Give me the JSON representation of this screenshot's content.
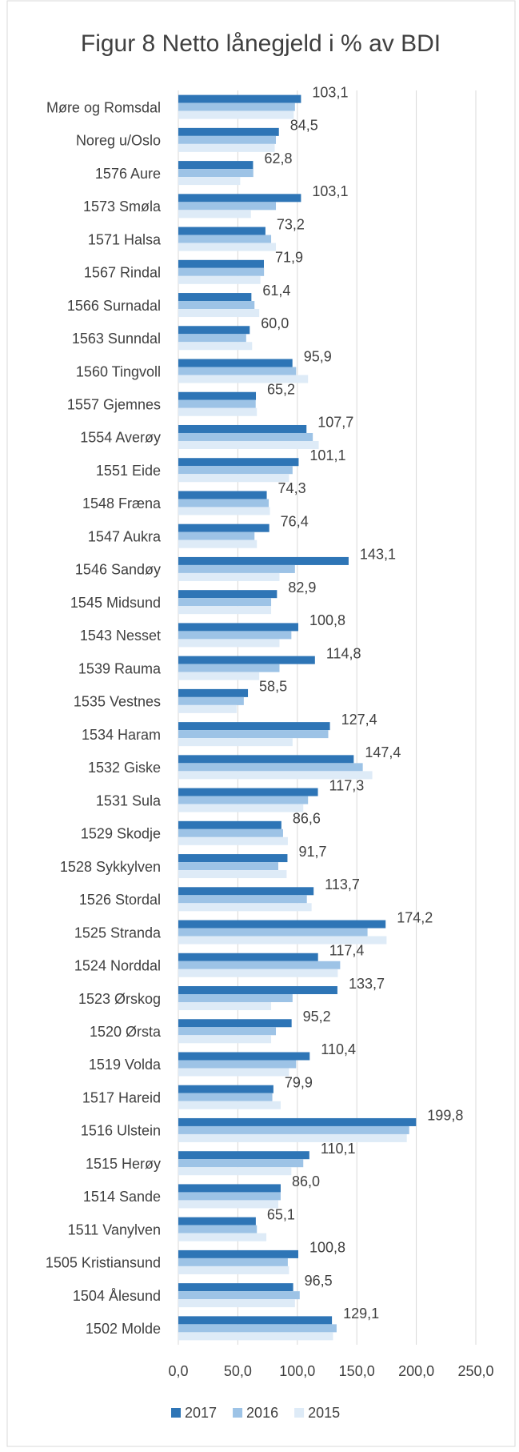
{
  "chart_data": {
    "type": "bar",
    "orientation": "horizontal",
    "title": "Figur 8 Netto lånegjeld i % av BDI",
    "categories": [
      "Møre og Romsdal",
      "Noreg u/Oslo",
      "1576 Aure",
      "1573 Smøla",
      "1571 Halsa",
      "1567 Rindal",
      "1566 Surnadal",
      "1563 Sunndal",
      "1560 Tingvoll",
      "1557 Gjemnes",
      "1554 Averøy",
      "1551 Eide",
      "1548 Fræna",
      "1547 Aukra",
      "1546 Sandøy",
      "1545 Midsund",
      "1543 Nesset",
      "1539 Rauma",
      "1535 Vestnes",
      "1534 Haram",
      "1532 Giske",
      "1531 Sula",
      "1529 Skodje",
      "1528 Sykkylven",
      "1526 Stordal",
      "1525 Stranda",
      "1524 Norddal",
      "1523 Ørskog",
      "1520 Ørsta",
      "1519 Volda",
      "1517 Hareid",
      "1516 Ulstein",
      "1515 Herøy",
      "1514 Sande",
      "1511 Vanylven",
      "1505 Kristiansund",
      "1504 Ålesund",
      "1502 Molde"
    ],
    "series": [
      {
        "name": "2017",
        "color": "#2e75b6",
        "values": [
          103.1,
          84.5,
          62.8,
          103.1,
          73.2,
          71.9,
          61.4,
          60.0,
          95.9,
          65.2,
          107.7,
          101.1,
          74.3,
          76.4,
          143.1,
          82.9,
          100.8,
          114.8,
          58.5,
          127.4,
          147.4,
          117.3,
          86.6,
          91.7,
          113.7,
          174.2,
          117.4,
          133.7,
          95.2,
          110.4,
          79.9,
          199.8,
          110.1,
          86.0,
          65.1,
          100.8,
          96.5,
          129.1
        ],
        "value_labels": [
          "103,1",
          "84,5",
          "62,8",
          "103,1",
          "73,2",
          "71,9",
          "61,4",
          "60,0",
          "95,9",
          "65,2",
          "107,7",
          "101,1",
          "74,3",
          "76,4",
          "143,1",
          "82,9",
          "100,8",
          "114,8",
          "58,5",
          "127,4",
          "147,4",
          "117,3",
          "86,6",
          "91,7",
          "113,7",
          "174,2",
          "117,4",
          "133,7",
          "95,2",
          "110,4",
          "79,9",
          "199,8",
          "110,1",
          "86,0",
          "65,1",
          "100,8",
          "96,5",
          "129,1"
        ]
      },
      {
        "name": "2016",
        "color": "#9dc3e6",
        "values": [
          98,
          82,
          63,
          82,
          78,
          72,
          64,
          57,
          99,
          65,
          113,
          96,
          76,
          64,
          98,
          78,
          95,
          85,
          55,
          126,
          155,
          109,
          88,
          84,
          108,
          159,
          136,
          96,
          82,
          99,
          79,
          194,
          105,
          86,
          66,
          92,
          102,
          133
        ]
      },
      {
        "name": "2015",
        "color": "#deebf7",
        "values": [
          97,
          81,
          52,
          61,
          82,
          69,
          68,
          62,
          109,
          66,
          118,
          93,
          77,
          66,
          85,
          78,
          85,
          68,
          49,
          96,
          163,
          105,
          92,
          91,
          112,
          175,
          134,
          78,
          78,
          93,
          86,
          192,
          95,
          84,
          74,
          93,
          98,
          130
        ]
      }
    ],
    "xlim": [
      0,
      250
    ],
    "xticks": [
      {
        "value": 0,
        "label": "0,0"
      },
      {
        "value": 50,
        "label": "50,0"
      },
      {
        "value": 100,
        "label": "100,0"
      },
      {
        "value": 150,
        "label": "150,0"
      },
      {
        "value": 200,
        "label": "200,0"
      },
      {
        "value": 250,
        "label": "250,0"
      }
    ],
    "grid": true,
    "legend": "bottom"
  }
}
